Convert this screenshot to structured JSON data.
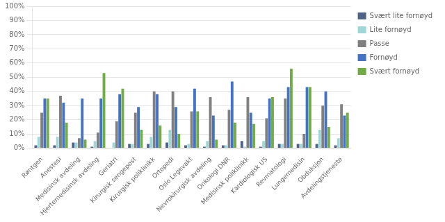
{
  "chart_data": {
    "type": "bar",
    "categories": [
      "Røntgen",
      "Anestesi",
      "Medisinsk avdeling",
      "Hjertemedisinsk avdeling",
      "Geriatri",
      "Kirurgisk sengepost",
      "Kirurgisk poliklinikk",
      "Ortopedi",
      "Oslo Legevakt",
      "Nevrokirurgisk avdeling",
      "Onkologi DNR",
      "Medisinsk poliklinikk",
      "Kardiologisk US",
      "Revmatologi",
      "Lungemedisin",
      "Obduksjon",
      "Avdelingstjeneste"
    ],
    "series": [
      {
        "name": "Svært lite fornøyd",
        "color": "#4f6288",
        "values": [
          2,
          2,
          4,
          1,
          0,
          3,
          3,
          4,
          2,
          1,
          2,
          5,
          1,
          3,
          3,
          3,
          2
        ]
      },
      {
        "name": "Lite fornøyd",
        "color": "#9fd7d8",
        "values": [
          8,
          8,
          4,
          5,
          4,
          3,
          8,
          13,
          3,
          5,
          2,
          1,
          5,
          3,
          3,
          13,
          7
        ]
      },
      {
        "name": "Passe",
        "color": "#808080",
        "values": [
          25,
          37,
          7,
          11,
          19,
          25,
          40,
          40,
          26,
          36,
          27,
          36,
          21,
          35,
          10,
          30,
          31
        ]
      },
      {
        "name": "Fornøyd",
        "color": "#4472c4",
        "values": [
          35,
          32,
          35,
          35,
          38,
          29,
          38,
          29,
          42,
          23,
          47,
          25,
          35,
          43,
          43,
          40,
          23
        ]
      },
      {
        "name": "Svært fornøyd",
        "color": "#70ad47",
        "values": [
          35,
          18,
          6,
          53,
          42,
          13,
          16,
          10,
          26,
          6,
          18,
          17,
          36,
          56,
          43,
          15,
          25
        ]
      }
    ],
    "ylim": [
      0,
      100
    ],
    "yticks": [
      {
        "value": 0,
        "label": "0%"
      },
      {
        "value": 10,
        "label": "10%"
      },
      {
        "value": 20,
        "label": "20%"
      },
      {
        "value": 30,
        "label": "30%"
      },
      {
        "value": 40,
        "label": "40%"
      },
      {
        "value": 50,
        "label": "50%"
      },
      {
        "value": 60,
        "label": "60%"
      },
      {
        "value": 70,
        "label": "70%"
      },
      {
        "value": 80,
        "label": "80%"
      },
      {
        "value": 90,
        "label": "90%"
      },
      {
        "value": 100,
        "label": "100%"
      }
    ],
    "grid": true,
    "legend": "upper right"
  }
}
